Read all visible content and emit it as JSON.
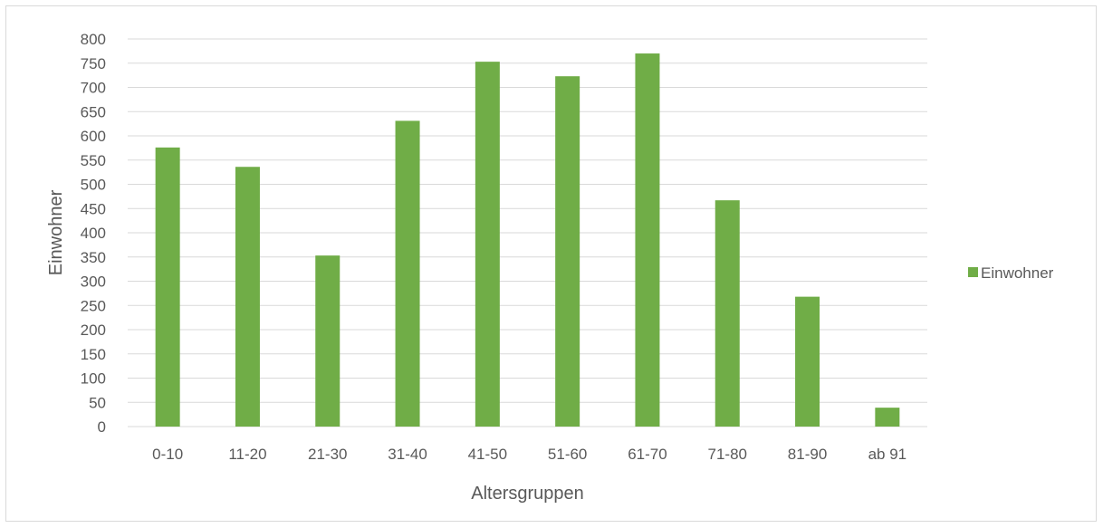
{
  "chart_data": {
    "type": "bar",
    "categories": [
      "0-10",
      "11-20",
      "21-30",
      "31-40",
      "41-50",
      "51-60",
      "61-70",
      "71-80",
      "81-90",
      "ab 91"
    ],
    "series": [
      {
        "name": "Einwohner",
        "values": [
          576,
          536,
          353,
          631,
          753,
          723,
          770,
          467,
          268,
          39
        ]
      }
    ],
    "title": "",
    "xlabel": "Altersgruppen",
    "ylabel": "Einwohner",
    "ylim": [
      0,
      800
    ],
    "ytick_step": 50,
    "yticks": [
      "0",
      "50",
      "100",
      "150",
      "200",
      "250",
      "300",
      "350",
      "400",
      "450",
      "500",
      "550",
      "600",
      "650",
      "700",
      "750",
      "800"
    ],
    "grid": true,
    "legend_position": "right",
    "colors": {
      "bar": "#70AD47",
      "grid": "#d9d9d9",
      "text": "#595959"
    }
  }
}
